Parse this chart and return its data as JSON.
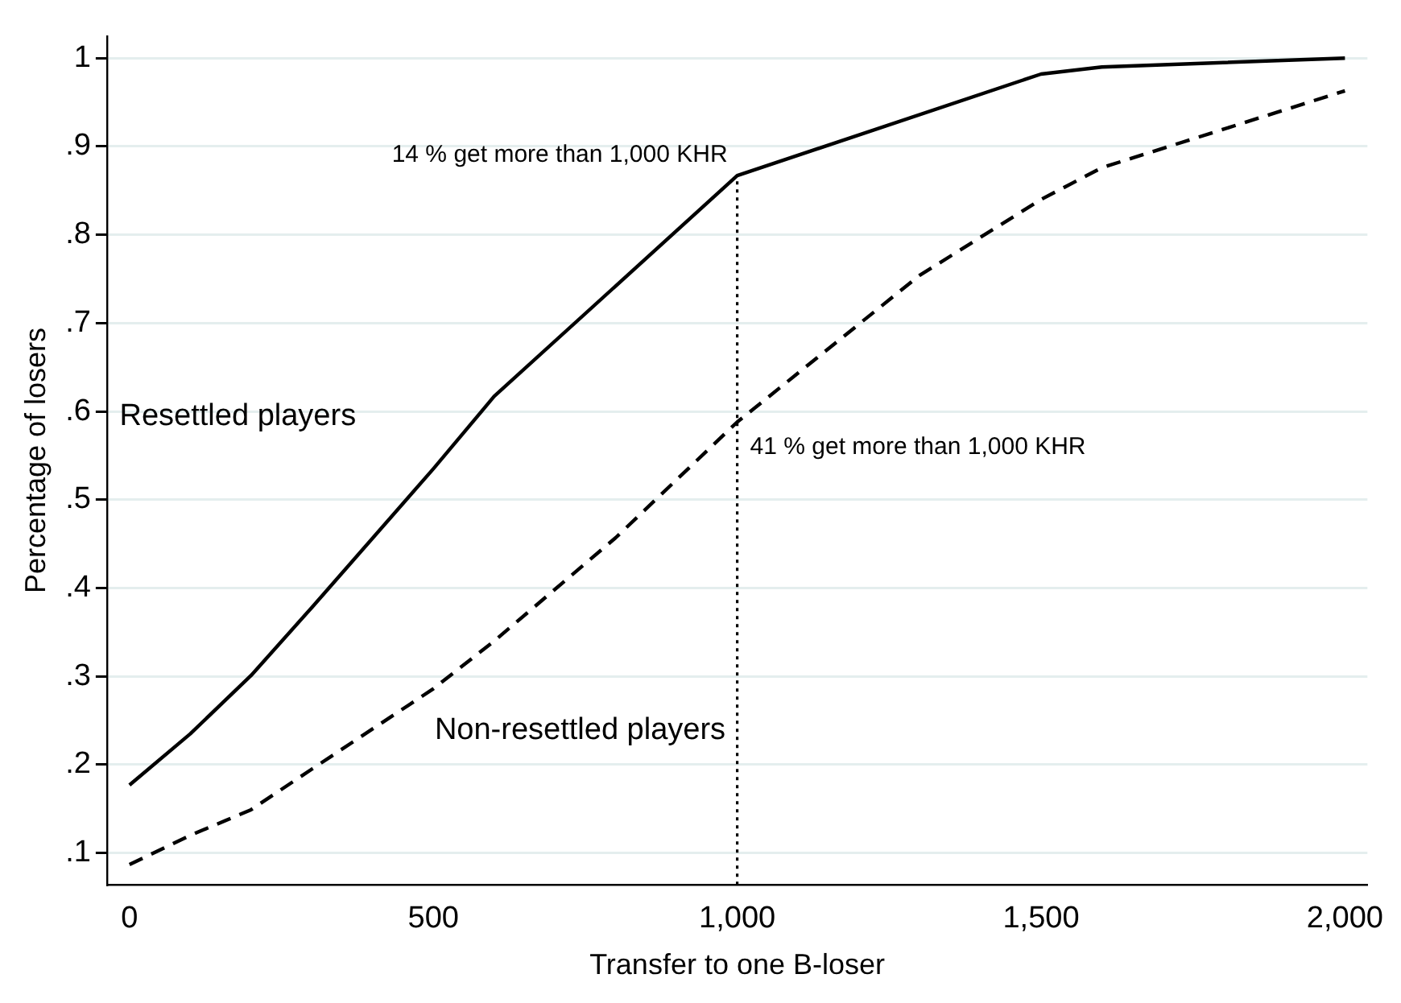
{
  "chart_data": {
    "type": "line",
    "xlabel": "Transfer to one B-loser",
    "ylabel": "Percentage of losers",
    "xlim": [
      -37,
      2037
    ],
    "ylim": [
      0.064,
      1.025
    ],
    "xticks": [
      0,
      500,
      {
        "value": 1000,
        "label": "1,000"
      },
      {
        "value": 1500,
        "label": "1,500"
      },
      {
        "value": 2000,
        "label": "2,000"
      }
    ],
    "yticks": [
      {
        "value": 0.1,
        "label": ".1"
      },
      {
        "value": 0.2,
        "label": ".2"
      },
      {
        "value": 0.3,
        "label": ".3"
      },
      {
        "value": 0.4,
        "label": ".4"
      },
      {
        "value": 0.5,
        "label": ".5"
      },
      {
        "value": 0.6,
        "label": ".6"
      },
      {
        "value": 0.7,
        "label": ".7"
      },
      {
        "value": 0.8,
        "label": ".8"
      },
      {
        "value": 0.9,
        "label": ".9"
      },
      1
    ],
    "grid": "y",
    "legend": false,
    "marker": "none",
    "series": [
      {
        "name": "Resettled players",
        "color": "#000000",
        "line_style": "solid",
        "x": [
          0,
          100,
          200,
          300,
          500,
          600,
          1000,
          1500,
          1600,
          2000
        ],
        "values": [
          0.177,
          0.235,
          0.301,
          0.378,
          0.535,
          0.617,
          0.867,
          0.982,
          0.99,
          1.0
        ]
      },
      {
        "name": "Non-resettled players",
        "color": "#000000",
        "line_style": "dashed",
        "x": [
          0,
          100,
          200,
          300,
          500,
          600,
          800,
          1000,
          1300,
          1500,
          1600,
          2000
        ],
        "values": [
          0.087,
          0.12,
          0.149,
          0.195,
          0.286,
          0.34,
          0.457,
          0.588,
          0.754,
          0.84,
          0.876,
          0.963
        ]
      },
      {
        "color": "#000000",
        "line_style": "dotted",
        "x": [
          1000,
          1000
        ],
        "values": [
          0.064,
          0.867
        ]
      }
    ],
    "annotations": [
      {
        "text": "14 % get more than 1,000 KHR",
        "x": 1000,
        "y": 0.867
      },
      {
        "text": "41 % get more than 1,000 KHR",
        "x": 1000,
        "y": 0.588
      }
    ]
  }
}
